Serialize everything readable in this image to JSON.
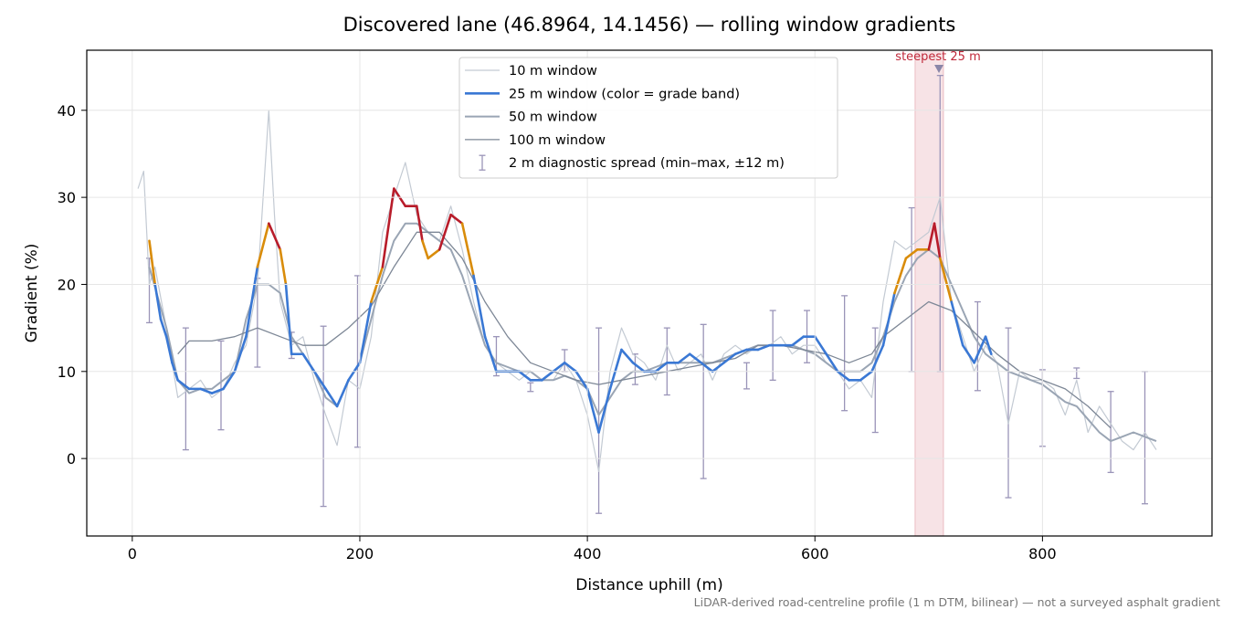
{
  "chart_data": {
    "type": "line",
    "title": "Discovered lane (46.8964, 14.1456) — rolling window gradients",
    "x_label": "Distance uphill (m)",
    "y_label": "Gradient (%)",
    "footnote": "LiDAR-derived road-centreline profile (1 m DTM, bilinear) — not a surveyed asphalt gradient",
    "xlim": [
      -40,
      949
    ],
    "ylim": [
      -8.9,
      46.9
    ],
    "xticks": [
      0,
      200,
      400,
      600,
      800
    ],
    "yticks": [
      0,
      10,
      20,
      30,
      40
    ],
    "grid": true,
    "legend": "upper center",
    "series": [
      {
        "name": "10 m window",
        "color": "#c3cad3",
        "width": 1.2,
        "x": [
          5,
          10,
          15,
          20,
          30,
          40,
          50,
          60,
          70,
          80,
          90,
          100,
          110,
          115,
          120,
          125,
          130,
          140,
          150,
          160,
          170,
          180,
          190,
          200,
          210,
          220,
          230,
          240,
          250,
          260,
          270,
          280,
          290,
          300,
          310,
          320,
          330,
          340,
          350,
          360,
          370,
          380,
          390,
          400,
          410,
          420,
          430,
          440,
          450,
          460,
          470,
          480,
          490,
          500,
          510,
          520,
          530,
          540,
          550,
          560,
          570,
          580,
          590,
          600,
          610,
          620,
          630,
          640,
          650,
          660,
          670,
          680,
          690,
          700,
          710,
          720,
          730,
          740,
          750,
          760,
          770,
          780,
          790,
          800,
          810,
          820,
          830,
          840,
          850,
          860,
          870,
          880,
          890,
          900
        ],
        "values": [
          31,
          33,
          20,
          22,
          15,
          7,
          8,
          9,
          7,
          8,
          11,
          13,
          20,
          30,
          40,
          28,
          18,
          13,
          14,
          9,
          5,
          1.5,
          9,
          8,
          14,
          26,
          30,
          34,
          28,
          26,
          25,
          29,
          24,
          18,
          13,
          11,
          10,
          9,
          10,
          9,
          9,
          11,
          9,
          5,
          -1.5,
          10,
          15,
          12,
          11,
          9,
          13,
          10,
          11,
          12,
          9,
          12,
          13,
          12,
          13,
          13,
          14,
          12,
          13,
          13,
          11,
          10,
          8,
          9,
          7,
          18,
          25,
          24,
          25,
          26,
          30,
          18,
          14,
          10,
          13,
          11,
          4,
          10,
          9,
          9,
          8,
          5,
          9,
          3,
          6,
          4,
          2,
          1,
          3,
          1
        ]
      },
      {
        "name": "25 m window (color = grade band)",
        "color": "#3a78d4",
        "width": 2.6,
        "banded": true,
        "x": [
          15,
          20,
          25,
          30,
          35,
          40,
          50,
          60,
          70,
          80,
          90,
          100,
          110,
          120,
          130,
          135,
          140,
          150,
          160,
          170,
          180,
          190,
          200,
          210,
          220,
          230,
          240,
          250,
          255,
          260,
          270,
          280,
          290,
          300,
          310,
          320,
          330,
          340,
          350,
          360,
          370,
          380,
          390,
          400,
          410,
          420,
          430,
          440,
          450,
          460,
          470,
          480,
          490,
          500,
          510,
          520,
          530,
          540,
          550,
          560,
          570,
          580,
          590,
          600,
          610,
          620,
          630,
          640,
          650,
          660,
          670,
          680,
          690,
          700,
          705,
          710,
          720,
          730,
          740,
          750,
          755
        ],
        "values": [
          25,
          20,
          16,
          14,
          11,
          9,
          8,
          8,
          7.5,
          8,
          10,
          14,
          22,
          27,
          24,
          20,
          12,
          12,
          10,
          8,
          6,
          9,
          11,
          18,
          22,
          31,
          29,
          29,
          25,
          23,
          24,
          28,
          27,
          21,
          14,
          10,
          10,
          10,
          9,
          9,
          10,
          11,
          10,
          8,
          3,
          8,
          12.5,
          11,
          10,
          10,
          11,
          11,
          12,
          11,
          10,
          11,
          12,
          12.5,
          12.5,
          13,
          13,
          13,
          14,
          14,
          12,
          10,
          9,
          9,
          10,
          13,
          19,
          23,
          24,
          24,
          27,
          23,
          18,
          13,
          11,
          14,
          12
        ]
      },
      {
        "name": "50 m window",
        "color": "#9aa5b4",
        "width": 2,
        "x": [
          15,
          30,
          40,
          50,
          60,
          70,
          80,
          90,
          100,
          110,
          120,
          130,
          140,
          150,
          160,
          170,
          180,
          190,
          200,
          210,
          220,
          230,
          240,
          250,
          260,
          270,
          280,
          290,
          300,
          310,
          320,
          330,
          340,
          350,
          360,
          370,
          380,
          390,
          400,
          410,
          420,
          430,
          440,
          450,
          460,
          470,
          480,
          490,
          500,
          510,
          520,
          530,
          540,
          550,
          560,
          570,
          580,
          590,
          600,
          610,
          620,
          630,
          640,
          650,
          660,
          670,
          680,
          690,
          700,
          710,
          720,
          730,
          740,
          750,
          760,
          770,
          780,
          790,
          800,
          810,
          820,
          830,
          840,
          850,
          860,
          870,
          880,
          890,
          900
        ],
        "values": [
          22,
          15,
          9,
          7.5,
          8,
          8,
          9,
          10,
          16,
          20,
          20,
          19,
          14,
          12,
          10,
          7,
          6,
          9,
          11,
          16,
          21,
          25,
          27,
          27,
          26,
          25,
          24,
          21,
          17,
          13,
          11,
          10.5,
          10,
          10,
          9,
          9,
          9.5,
          9,
          8,
          5,
          7,
          9,
          10,
          10,
          10.5,
          11,
          11,
          11,
          11,
          11,
          11.5,
          12,
          12.5,
          13,
          13,
          13,
          13,
          12.5,
          12,
          11,
          10,
          10,
          10,
          11,
          14,
          18,
          21,
          23,
          24,
          23,
          20,
          17,
          14,
          12,
          11,
          10,
          9.5,
          9,
          8.5,
          7.5,
          6.5,
          6,
          4.5,
          3,
          2,
          2.5,
          3,
          2.5,
          2
        ]
      },
      {
        "name": "100 m window",
        "color": "#7d8796",
        "width": 1.3,
        "x": [
          40,
          50,
          70,
          90,
          110,
          130,
          150,
          170,
          190,
          210,
          230,
          250,
          270,
          290,
          310,
          330,
          350,
          370,
          390,
          410,
          430,
          450,
          470,
          490,
          510,
          530,
          550,
          570,
          590,
          610,
          630,
          650,
          660,
          680,
          700,
          720,
          740,
          760,
          780,
          800,
          820,
          840,
          860
        ],
        "values": [
          12,
          13.5,
          13.5,
          14,
          15,
          14,
          13,
          13,
          15,
          17.5,
          22,
          26,
          26,
          23,
          18,
          14,
          11,
          10,
          9,
          8.5,
          9,
          9.5,
          10,
          10.5,
          11,
          11.5,
          13,
          13,
          12.5,
          12,
          11,
          12,
          14,
          16,
          18,
          17,
          14.5,
          12,
          10,
          9,
          8,
          6,
          3.5
        ]
      }
    ],
    "band_thresholds": [
      20,
      25
    ],
    "band_colors": [
      "#3a78d4",
      "#d98c0a",
      "#b81c2a"
    ],
    "error_bars": {
      "name": "2 m diagnostic spread (min–max, ±12 m)",
      "color": "#9a94b8",
      "x": [
        15,
        47,
        78,
        110,
        140,
        168,
        198,
        320,
        350,
        380,
        410,
        442,
        470,
        502,
        540,
        563,
        593,
        626,
        653,
        685,
        710,
        743,
        770,
        800,
        830,
        860,
        890
      ],
      "low": [
        15.6,
        1,
        3.3,
        10.5,
        11.5,
        -5.5,
        1.3,
        9.5,
        7.7,
        10,
        -6.3,
        8.5,
        7.3,
        -2.3,
        8,
        9,
        11,
        5.5,
        3,
        10,
        10,
        7.8,
        -4.5,
        1.4,
        9.2,
        -1.6,
        -5.2
      ],
      "high": [
        23,
        15,
        13.5,
        20.7,
        14.5,
        15.2,
        21,
        14,
        8.7,
        12.5,
        15,
        12,
        15,
        15.4,
        11,
        17,
        17,
        18.7,
        15,
        28.8,
        44,
        18,
        15,
        10.2,
        10.4,
        7.7,
        10
      ]
    },
    "steepest": {
      "label": "steepest 25 m",
      "x_start": 688,
      "x_end": 713,
      "marker_x": 709,
      "marker_y": 44.8,
      "color": "#c0283a"
    }
  }
}
